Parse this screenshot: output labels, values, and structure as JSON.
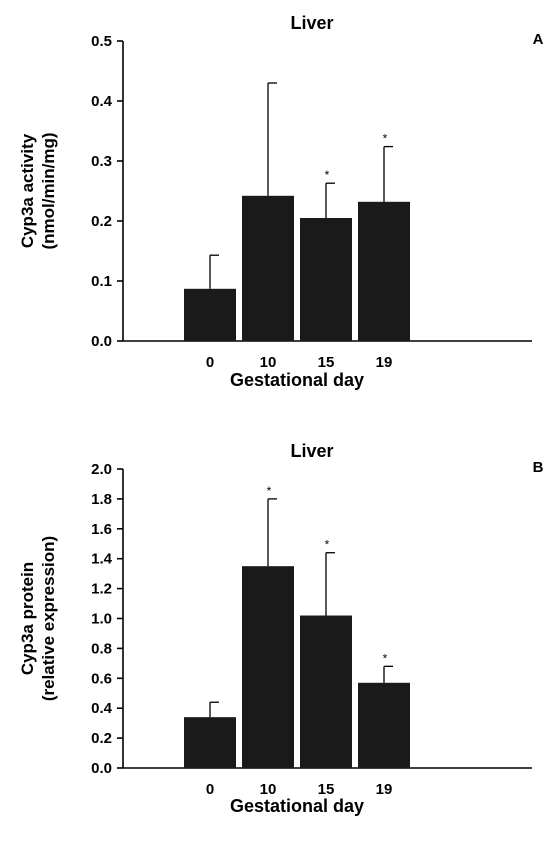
{
  "chart_data": [
    {
      "type": "bar",
      "panel": "A",
      "title": "Liver",
      "xlabel": "Gestational day",
      "ylabel": [
        "Cyp3a activity",
        "(nmol/min/mg)"
      ],
      "categories": [
        "0",
        "10",
        "15",
        "19"
      ],
      "values": [
        0.087,
        0.242,
        0.205,
        0.232
      ],
      "errors": [
        0.056,
        0.188,
        0.058,
        0.092
      ],
      "significance": [
        "",
        "",
        "*",
        "*"
      ],
      "ylim": [
        0,
        0.5
      ],
      "yticks": [
        "0.0",
        "0.1",
        "0.2",
        "0.3",
        "0.4",
        "0.5"
      ],
      "bar_color": "#1a1a1a"
    },
    {
      "type": "bar",
      "panel": "B",
      "title": "Liver",
      "xlabel": "Gestational day",
      "ylabel": [
        "Cyp3a protein",
        "(relative expression)"
      ],
      "categories": [
        "0",
        "10",
        "15",
        "19"
      ],
      "values": [
        0.34,
        1.35,
        1.02,
        0.57
      ],
      "errors": [
        0.1,
        0.45,
        0.42,
        0.11
      ],
      "significance": [
        "",
        "*",
        "*",
        "*"
      ],
      "ylim": [
        0,
        2.0
      ],
      "yticks": [
        "0.0",
        "0.2",
        "0.4",
        "0.6",
        "0.8",
        "1.0",
        "1.2",
        "1.4",
        "1.6",
        "1.8",
        "2.0"
      ],
      "bar_color": "#1a1a1a"
    }
  ]
}
